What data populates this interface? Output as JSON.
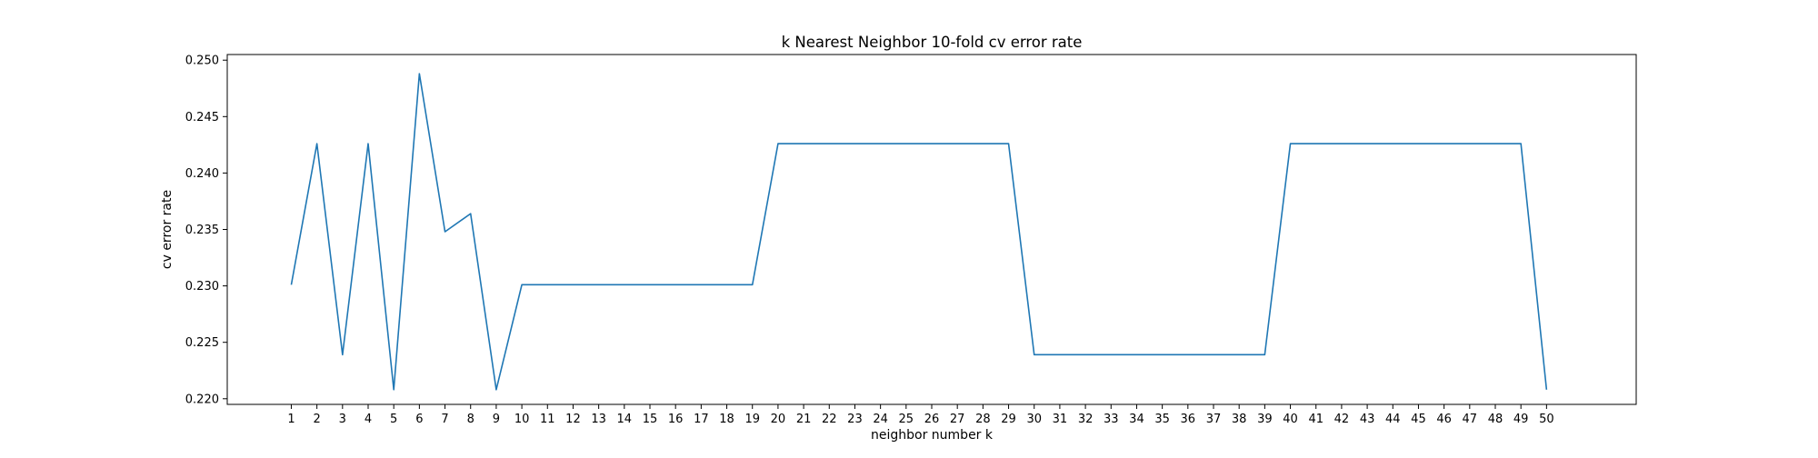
{
  "chart_data": {
    "type": "line",
    "title": "k Nearest Neighbor 10-fold cv error rate",
    "xlabel": "neighbor number k",
    "ylabel": "cv error rate",
    "ylim": [
      0.2195,
      0.2505
    ],
    "xlim": [
      -1.5,
      53.5
    ],
    "grid": false,
    "line_color": "#1f77b4",
    "x_ticks": [
      1,
      2,
      3,
      4,
      5,
      6,
      7,
      8,
      9,
      10,
      11,
      12,
      13,
      14,
      15,
      16,
      17,
      18,
      19,
      20,
      21,
      22,
      23,
      24,
      25,
      26,
      27,
      28,
      29,
      30,
      31,
      32,
      33,
      34,
      35,
      36,
      37,
      38,
      39,
      40,
      41,
      42,
      43,
      44,
      45,
      46,
      47,
      48,
      49,
      50
    ],
    "y_ticks": [
      "0.220",
      "0.225",
      "0.230",
      "0.235",
      "0.240",
      "0.245",
      "0.250"
    ],
    "x": [
      1,
      2,
      3,
      4,
      5,
      6,
      7,
      8,
      9,
      10,
      11,
      12,
      13,
      14,
      15,
      16,
      17,
      18,
      19,
      20,
      21,
      22,
      23,
      24,
      25,
      26,
      27,
      28,
      29,
      30,
      31,
      32,
      33,
      34,
      35,
      36,
      37,
      38,
      39,
      40,
      41,
      42,
      43,
      44,
      45,
      46,
      47,
      48,
      49,
      50
    ],
    "series": [
      {
        "values": [
          0.2301,
          0.2426,
          0.2239,
          0.2426,
          0.2208,
          0.2488,
          0.2348,
          0.2364,
          0.2208,
          0.2301,
          0.2301,
          0.2301,
          0.2301,
          0.2301,
          0.2301,
          0.2301,
          0.2301,
          0.2301,
          0.2301,
          0.2426,
          0.2426,
          0.2426,
          0.2426,
          0.2426,
          0.2426,
          0.2426,
          0.2426,
          0.2426,
          0.2426,
          0.2239,
          0.2239,
          0.2239,
          0.2239,
          0.2239,
          0.2239,
          0.2239,
          0.2239,
          0.2239,
          0.2239,
          0.2426,
          0.2426,
          0.2426,
          0.2426,
          0.2426,
          0.2426,
          0.2426,
          0.2426,
          0.2426,
          0.2426,
          0.2208
        ]
      }
    ]
  }
}
